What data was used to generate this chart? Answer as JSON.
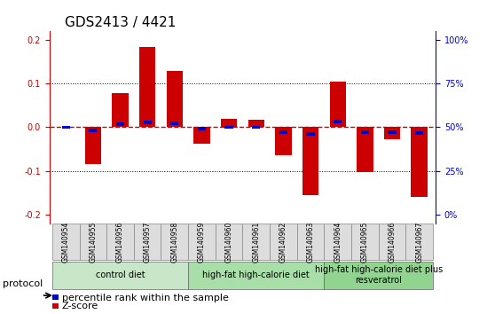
{
  "title": "GDS2413 / 4421",
  "samples": [
    "GSM140954",
    "GSM140955",
    "GSM140956",
    "GSM140957",
    "GSM140958",
    "GSM140959",
    "GSM140960",
    "GSM140961",
    "GSM140962",
    "GSM140963",
    "GSM140964",
    "GSM140965",
    "GSM140966",
    "GSM140967"
  ],
  "zscore": [
    0.002,
    -0.085,
    0.078,
    0.185,
    0.13,
    -0.038,
    0.02,
    0.018,
    -0.065,
    -0.155,
    0.105,
    -0.103,
    -0.028,
    -0.16
  ],
  "pct_rank": [
    0.5,
    0.48,
    0.52,
    0.53,
    0.525,
    0.49,
    0.5,
    0.5,
    0.47,
    0.46,
    0.535,
    0.47,
    0.47,
    0.465
  ],
  "groups": [
    {
      "label": "control diet",
      "start": 0,
      "end": 5,
      "color": "#c8e6c8"
    },
    {
      "label": "high-fat high-calorie diet",
      "start": 5,
      "end": 10,
      "color": "#a8dfa8"
    },
    {
      "label": "high-fat high-calorie diet plus\nresveratrol",
      "start": 10,
      "end": 14,
      "color": "#90d490"
    }
  ],
  "ylim": [
    -0.22,
    0.22
  ],
  "yticks_left": [
    -0.2,
    -0.1,
    0.0,
    0.1,
    0.2
  ],
  "yticks_right": [
    0,
    25,
    50,
    75,
    100
  ],
  "zscore_color": "#cc0000",
  "pct_color": "#0000cc",
  "zero_line_color": "#cc0000",
  "grid_color": "#000000",
  "bar_width": 0.6,
  "pct_bar_width": 0.3,
  "pct_bar_height": 0.008,
  "background_color": "#ffffff",
  "title_fontsize": 11,
  "tick_fontsize": 7,
  "legend_fontsize": 8,
  "group_fontsize": 8,
  "protocol_label": "protocol"
}
